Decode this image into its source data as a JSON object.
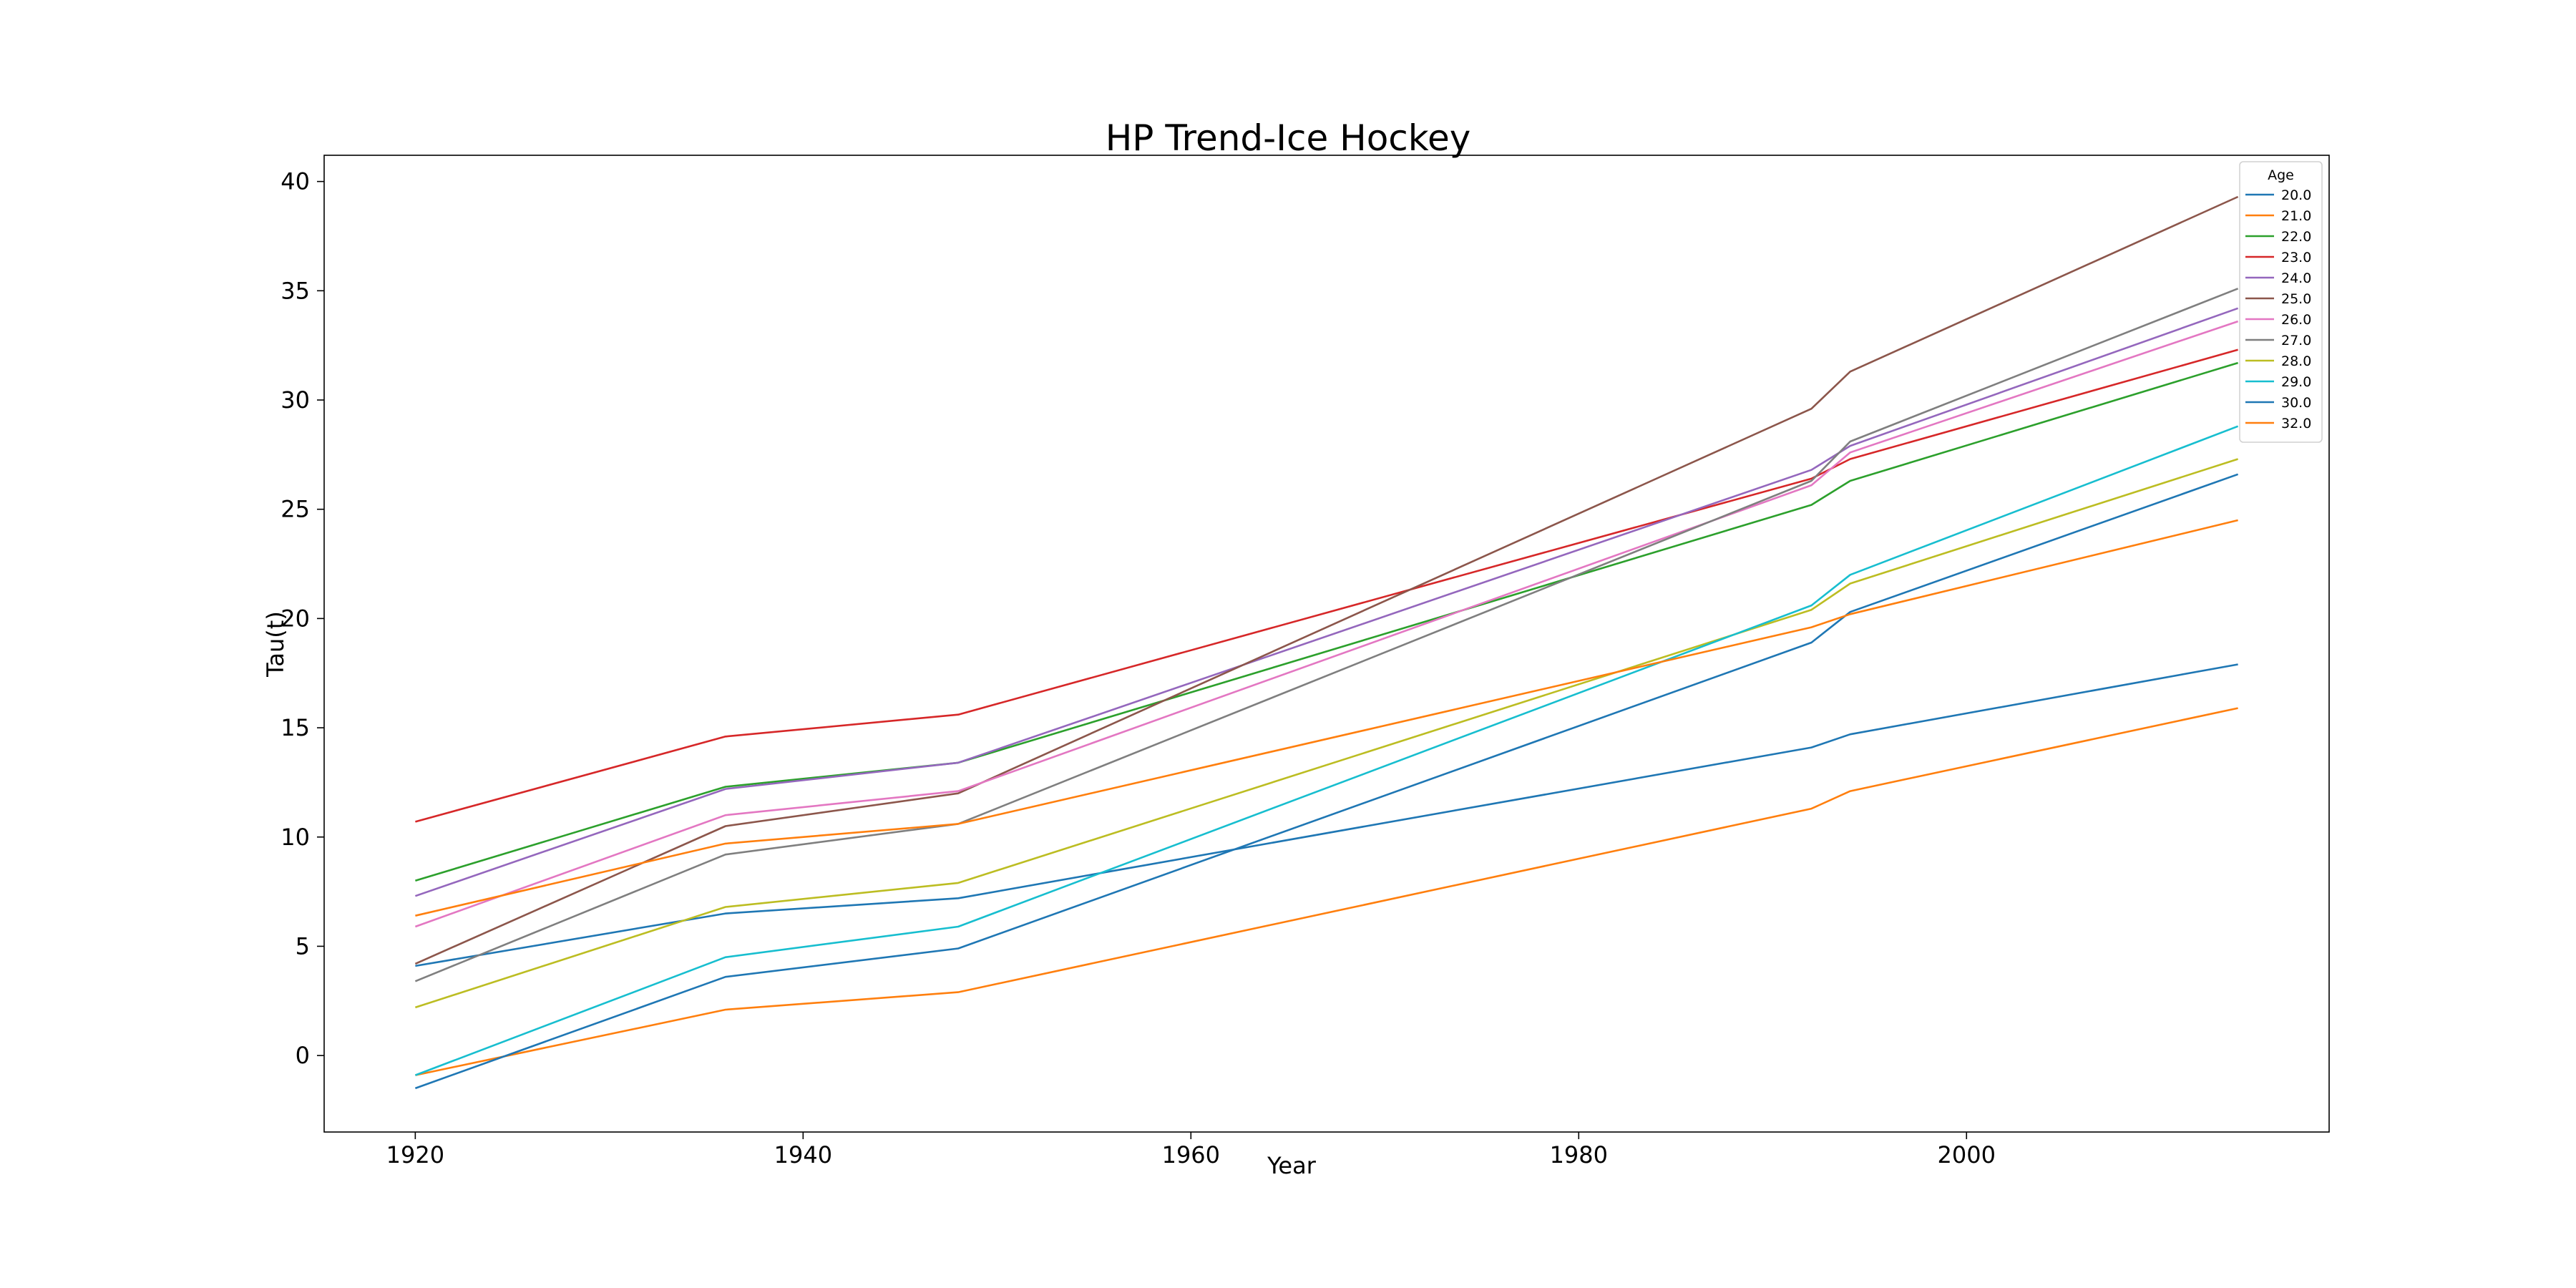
{
  "chart_data": {
    "type": "line",
    "title": "HP Trend-Ice Hockey",
    "xlabel": "Year",
    "ylabel": "Tau(t)",
    "xlim": [
      1915.3,
      2018.7
    ],
    "ylim": [
      -3.5,
      41.2
    ],
    "xticks": [
      1920,
      1940,
      1960,
      1980,
      2000
    ],
    "yticks": [
      0,
      5,
      10,
      15,
      20,
      25,
      30,
      35,
      40
    ],
    "grid": false,
    "legend": {
      "title": "Age",
      "position": "top-right"
    },
    "x": [
      1920,
      1936,
      1948,
      1992,
      1994,
      2014
    ],
    "series": [
      {
        "name": "20.0",
        "color": "#1f77b4",
        "values": [
          4.1,
          6.5,
          7.2,
          14.1,
          14.7,
          17.9
        ]
      },
      {
        "name": "21.0",
        "color": "#ff7f0e",
        "values": [
          -0.9,
          2.1,
          2.9,
          11.3,
          12.1,
          15.9
        ]
      },
      {
        "name": "22.0",
        "color": "#2ca02c",
        "values": [
          8.0,
          12.3,
          13.4,
          25.2,
          26.3,
          31.7
        ]
      },
      {
        "name": "23.0",
        "color": "#d62728",
        "values": [
          10.7,
          14.6,
          15.6,
          26.4,
          27.3,
          32.3
        ]
      },
      {
        "name": "24.0",
        "color": "#9467bd",
        "values": [
          7.3,
          12.2,
          13.4,
          26.8,
          27.9,
          34.2
        ]
      },
      {
        "name": "25.0",
        "color": "#8c564b",
        "values": [
          4.2,
          10.5,
          12.0,
          29.6,
          31.3,
          39.3
        ]
      },
      {
        "name": "26.0",
        "color": "#e377c2",
        "values": [
          5.9,
          11.0,
          12.1,
          26.1,
          27.6,
          33.6
        ]
      },
      {
        "name": "27.0",
        "color": "#7f7f7f",
        "values": [
          3.4,
          9.2,
          10.6,
          26.3,
          28.1,
          35.1
        ]
      },
      {
        "name": "28.0",
        "color": "#bcbd22",
        "values": [
          2.2,
          6.8,
          7.9,
          20.4,
          21.6,
          27.3
        ]
      },
      {
        "name": "29.0",
        "color": "#17becf",
        "values": [
          -0.9,
          4.5,
          5.9,
          20.6,
          22.0,
          28.8
        ]
      },
      {
        "name": "30.0",
        "color": "#1f77b4",
        "values": [
          -1.5,
          3.6,
          4.9,
          18.9,
          20.3,
          26.6
        ]
      },
      {
        "name": "32.0",
        "color": "#ff7f0e",
        "values": [
          6.4,
          9.7,
          10.6,
          19.6,
          20.2,
          24.5
        ]
      }
    ]
  }
}
